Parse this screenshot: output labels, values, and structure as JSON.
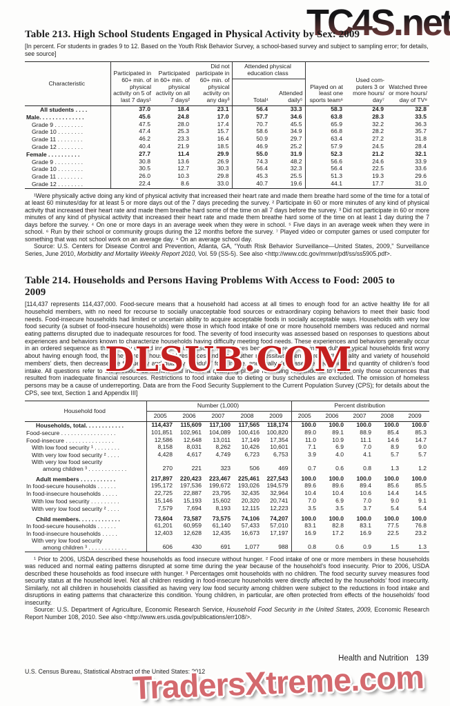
{
  "watermarks": {
    "top": "TC4S.net",
    "middle": "DLSUB.COM",
    "bottom": "TradersXtreme.com"
  },
  "footer": {
    "section": "Health and Nutrition",
    "page_number": "139",
    "left": "U.S. Census Bureau, Statistical Abstract of the United States: 2012"
  },
  "table213": {
    "title": "Table 213. High School Students Engaged in Physical Activity by Sex: 2009",
    "bracket": "[In percent. For students in grades 9 to 12. Based on the Youth Risk Behavior Survey, a school-based survey and subject to sampling error; for details, see source]",
    "header": {
      "stub": "Characteristic",
      "c1": "Participated in 60+ min. of physical activity on 5 of last 7 days¹",
      "c2": "Participated in 60+ min. of physical activity on all 7 days²",
      "c3": "Did not participate in 60+ min. of physical activity on any day³",
      "span": "Attended physical education class",
      "c4": "Total⁴",
      "c5": "Attended daily⁵",
      "c6": "Played on at least one sports team⁶",
      "c7": "Used com­puters 3 or more hours/ day⁷",
      "c8": "Watched three or more hours/ day of TV⁸"
    },
    "rows": [
      {
        "label": "All students . . . .",
        "ind": 20,
        "bold": true,
        "values": [
          "37.0",
          "18.4",
          "23.1",
          "56.4",
          "33.3",
          "58.3",
          "24.9",
          "32.8"
        ]
      },
      {
        "label": "Male. . . . . . . . . . . . . .",
        "ind": 0,
        "bold": true,
        "values": [
          "45.6",
          "24.8",
          "17.0",
          "57.7",
          "34.6",
          "63.8",
          "28.3",
          "33.5"
        ]
      },
      {
        "label": "Grade 9 . . . . . . . . .",
        "ind": 8,
        "values": [
          "47.5",
          "28.0",
          "17.4",
          "70.7",
          "45.5",
          "65.9",
          "32.2",
          "36.3"
        ]
      },
      {
        "label": "Grade 10 . . . . . . . .",
        "ind": 8,
        "values": [
          "47.4",
          "25.3",
          "15.7",
          "58.6",
          "34.9",
          "66.8",
          "28.2",
          "35.7"
        ]
      },
      {
        "label": "Grade 11 . . . . . . . .",
        "ind": 8,
        "values": [
          "46.2",
          "23.3",
          "16.4",
          "50.9",
          "29.7",
          "63.4",
          "27.2",
          "31.8"
        ]
      },
      {
        "label": "Grade 12 . . . . . . . .",
        "ind": 8,
        "values": [
          "40.4",
          "21.9",
          "18.5",
          "46.9",
          "25.2",
          "57.9",
          "24.5",
          "28.4"
        ]
      },
      {
        "label": "Female . . . . . . . . . .",
        "ind": 0,
        "bold": true,
        "values": [
          "27.7",
          "11.4",
          "29.9",
          "55.0",
          "31.9",
          "52.3",
          "21.2",
          "32.1"
        ]
      },
      {
        "label": "Grade 9 . . . . . . . . .",
        "ind": 8,
        "values": [
          "30.8",
          "13.6",
          "26.9",
          "74.3",
          "48.2",
          "56.6",
          "24.6",
          "33.9"
        ]
      },
      {
        "label": "Grade 10 . . . . . . . .",
        "ind": 8,
        "values": [
          "30.5",
          "12.7",
          "30.3",
          "56.4",
          "32.3",
          "56.4",
          "22.5",
          "33.6"
        ]
      },
      {
        "label": "Grade 11 . . . . . . . .",
        "ind": 8,
        "values": [
          "26.0",
          "10.3",
          "29.8",
          "45.3",
          "25.5",
          "51.3",
          "19.3",
          "29.6"
        ]
      },
      {
        "label": "Grade 12 . . . . . . . .",
        "ind": 8,
        "values": [
          "22.4",
          "8.6",
          "33.0",
          "40.7",
          "19.6",
          "44.1",
          "17.7",
          "31.0"
        ]
      }
    ],
    "notes": [
      "¹Were physically active doing any kind of physical activity that increased their heart rate and made them breathe hard some of the time for a total of at least 60 minutes/day for at least 5 or more days out of the 7 days preceding the survey. ² Participate in 60 or more minutes of any kind of physical activity that increased their heart rate and made them breathe hard some of the time on all 7 days before the survey. ³ Did not participate in 60 or more minutes of any kind of physical activity that increased their heart rate and made them breathe hard some of the time on at least 1 day during the 7 days before the survey. ⁴ On one or more days in an average week when they were in school. ⁵ Five days in an average week when they were in school. ⁶ Run by their school or community groups during the 12 months before the survey. ⁷ Played video or computer games or used computer for something that was not school work on an average day. ⁸ On an average school day."
    ],
    "source_prefix": "Source: U.S. Centers for Disease Control and Prevention, Atlanta, GA, “Youth Risk Behavior Surveillance—United States, 2009,” Surveillance Series, June 2010, ",
    "source_italic": "Morbidity and Mortality Weekly Report 2010,",
    "source_suffix": " Vol. 59 (SS-5). See also <http://www.cdc.gov/mmwr/pdf/ss/ss5905.pdf>."
  },
  "table214": {
    "title": "Table 214. Households and Persons Having Problems With Access to Food: 2005 to 2009",
    "intro": "[114,437 represents 114,437,000. Food-secure means that a household had access at all times to enough food for an active healthy life for all household members, with no need for recourse to socially unacceptable food sources or extraordinary coping behaviors to meet their basic food needs. Food-insecure households had limited or uncertain ability to acquire acceptable foods in socially acceptable ways. Households with very low food security (a subset of food-insecure households) were those  in which food intake of one or more household members was reduced and normal eating patterns disrupted due to inadequate resources for food. The severity of food insecurity was assessed based on responses to questions about experiences and behaviors known to characterize households having difficulty meeting food needs. These experiences and behaviors generally occur in an ordered sequence as the severity of food insecurity increases. As resources become more constrained, adults in typical households first worry about having enough food, then they stretch household resources and juggle other necessities, then decrease the quality and variety of household members’ diets, then decrease the frequency and quantity of adults’ food intake, and finally decrease the frequency and quantity of children’s food intake. All questions refer to the previous 12 months and include a qualifying phrase reminding respondents to report only those occurrences that resulted from inadequate financial resources. Restrictions to food intake due to dieting or busy schedules are excluded. The omission of homeless persons may be a cause of underreporting. Data are from the Food Security Supplement to the Current Population Survey (CPS); for details about the CPS, see text, Section 1 and Appendix III]",
    "header": {
      "stub": "Household food",
      "group1": "Number (1,000)",
      "group2": "Percent distribution",
      "years": [
        "2005",
        "2006",
        "2007",
        "2008",
        "2009",
        "2005",
        "2006",
        "2007",
        "2008",
        "2009"
      ]
    },
    "rows": [
      {
        "label": "Households, total. . . . . . . . . . . .",
        "ind": 14,
        "bold": true,
        "values": [
          "114,437",
          "115,609",
          "117,100",
          "117,565",
          "118,174",
          "100.0",
          "100.0",
          "100.0",
          "100.0",
          "100.0"
        ]
      },
      {
        "label": "Food-secure  . . . . . . . . . . . . . . . . .",
        "ind": 0,
        "values": [
          "101,851",
          "102,961",
          "104,089",
          "100,416",
          "100,820",
          "89.0",
          "89.1",
          "88.9",
          "85.4",
          "85.3"
        ]
      },
      {
        "label": "Food-insecure  . . . . . . . . . . . . . . .",
        "ind": 0,
        "values": [
          "12,586",
          "12,648",
          "13,011",
          "17,149",
          "17,354",
          "11.0",
          "10.9",
          "11.1",
          "14.6",
          "14.7"
        ]
      },
      {
        "label": "With low food security ¹ . . . . . . . .",
        "ind": 8,
        "values": [
          "8,158",
          "8,031",
          "8,262",
          "10,426",
          "10,601",
          "7.1",
          "6.9",
          "7.0",
          "8.9",
          "9.0"
        ]
      },
      {
        "label": "With very low food security ² . . . .",
        "ind": 8,
        "values": [
          "4,428",
          "4,617",
          "4,749",
          "6,723",
          "6,753",
          "3.9",
          "4.0",
          "4.1",
          "5.7",
          "5.7"
        ]
      },
      {
        "label": "With very low food security",
        "label2": "among children ³ . . . . . . . . . . . .",
        "ind": 8,
        "values": [
          "270",
          "221",
          "323",
          "506",
          "469",
          "0.7",
          "0.6",
          "0.8",
          "1.3",
          "1.2"
        ]
      },
      {
        "label": "Adult members  . . . . . . . . . . .",
        "ind": 14,
        "bold": true,
        "spacer": true,
        "values": [
          "217,897",
          "220,423",
          "223,467",
          "225,461",
          "227,543",
          "100.0",
          "100.0",
          "100.0",
          "100.0",
          "100.0"
        ]
      },
      {
        "label": "In food-secure households  . . . . . .",
        "ind": 0,
        "values": [
          "195,172",
          "197,536",
          "199,672",
          "193,026",
          "194,579",
          "89.6",
          "89.6",
          "89.4",
          "85.6",
          "85.5"
        ]
      },
      {
        "label": "In food-insecure households . . . . .",
        "ind": 0,
        "values": [
          "22,725",
          "22,887",
          "23,795",
          "32,435",
          "32,964",
          "10.4",
          "10.4",
          "10.6",
          "14.4",
          "14.5"
        ]
      },
      {
        "label": "With low food security  . . . . . . . . .",
        "ind": 8,
        "values": [
          "15,146",
          "15,193",
          "15,602",
          "20,320",
          "20,741",
          "7.0",
          "6.9",
          "7.0",
          "9.0",
          "9.1"
        ]
      },
      {
        "label": "With very low food security ² . . . .",
        "ind": 8,
        "values": [
          "7,579",
          "7,694",
          "8,193",
          "12,115",
          "12,223",
          "3.5",
          "3.5",
          "3.7",
          "5.4",
          "5.4"
        ]
      },
      {
        "label": "Child members. . . . . . . . . . . . .",
        "ind": 14,
        "bold": true,
        "spacer": true,
        "values": [
          "73,604",
          "73,587",
          "73,575",
          "74,106",
          "74,207",
          "100.0",
          "100.0",
          "100.0",
          "100.0",
          "100.0"
        ]
      },
      {
        "label": "In food-secure households  . . . . . .",
        "ind": 0,
        "values": [
          "61,201",
          "60,959",
          "61,140",
          "57,433",
          "57,010",
          "83.1",
          "82.8",
          "83.1",
          "77.5",
          "76.8"
        ]
      },
      {
        "label": "In food-insecure households . . . . .",
        "ind": 0,
        "values": [
          "12,403",
          "12,628",
          "12,435",
          "16,673",
          "17,197",
          "16.9",
          "17.2",
          "16.9",
          "22.5",
          "23.2"
        ]
      },
      {
        "label": "With very low food security",
        "label2": "among children ³ . . . . . . . . . . . .",
        "ind": 8,
        "values": [
          "606",
          "430",
          "691",
          "1,077",
          "988",
          "0.8",
          "0.6",
          "0.9",
          "1.5",
          "1.3"
        ]
      }
    ],
    "notes": [
      "¹ Prior to 2006, USDA described these households as food insecure without hunger. ² Food intake of one or more members in these households was reduced and normal eating patterns disrupted at some time during the year because of the household’s food insecurity. Prior to 2006, USDA described these households as food insecure with hunger. ³ Percentages omit households with no children. The food security survey measures food security status at the household level. Not all children residing in food-insecure households were directly affected by the households’ food insecurity. Similarly, not all children in households classified as having very low food security among children were subject to the reductions in food intake and disruptions in eating patterns that characterize this condition. Young children, in particular, are often protected from effects of the households’ food insecurity."
    ],
    "source_prefix": "Source: U.S. Department of Agriculture, Economic Research Service, ",
    "source_italic": "Household Food Security in the United States, 2009,",
    "source_suffix": " Economic Research Report Number 108, 2010. See also <http://www.ers.usda.gov/publications/err108/>."
  }
}
